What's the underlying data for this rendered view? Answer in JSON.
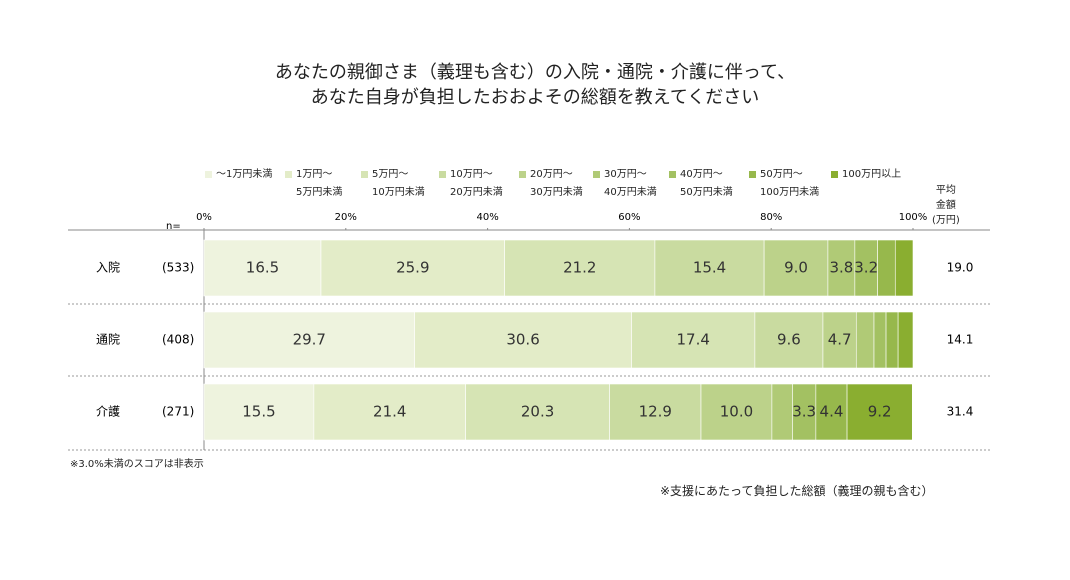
{
  "chart_data": {
    "type": "stacked-bar-horizontal",
    "title": "あなたの親御さま（義理も含む）の入院・通院・介護に伴って、\nあなた自身が負担したおおよその総額を教えてください",
    "categories": [
      "入院",
      "通院",
      "介護"
    ],
    "n_label": "n=",
    "sample_sizes": [
      "(533)",
      "(408)",
      "(271)"
    ],
    "average_header": "平均\n金額\n(万円)",
    "averages": [
      "19.0",
      "14.1",
      "31.4"
    ],
    "xlim": [
      0,
      100
    ],
    "xticks": [
      {
        "value": 0,
        "label": "0%"
      },
      {
        "value": 20,
        "label": "20%"
      },
      {
        "value": 40,
        "label": "40%"
      },
      {
        "value": 60,
        "label": "60%"
      },
      {
        "value": 80,
        "label": "80%"
      },
      {
        "value": 100,
        "label": "100%"
      }
    ],
    "series": [
      {
        "name": "～1万円未満",
        "color": "#eef3de",
        "values": [
          16.5,
          29.7,
          15.5
        ],
        "value_labels": [
          "16.5",
          "29.7",
          "15.5"
        ]
      },
      {
        "name": "1万円～\n5万円未満",
        "color": "#e3ecc8",
        "values": [
          25.9,
          30.6,
          21.4
        ],
        "value_labels": [
          "25.9",
          "30.6",
          "21.4"
        ]
      },
      {
        "name": "5万円～\n10万円未満",
        "color": "#d6e4b4",
        "values": [
          21.2,
          17.4,
          20.3
        ],
        "value_labels": [
          "21.2",
          "17.4",
          "20.3"
        ]
      },
      {
        "name": "10万円～\n20万円未満",
        "color": "#c9dba0",
        "values": [
          15.4,
          9.6,
          12.9
        ],
        "value_labels": [
          "15.4",
          "9.6",
          "12.9"
        ]
      },
      {
        "name": "20万円～\n30万円未満",
        "color": "#bcd28a",
        "values": [
          9.0,
          4.7,
          10.0
        ],
        "value_labels": [
          "9.0",
          "4.7",
          "10.0"
        ]
      },
      {
        "name": "30万円～\n40万円未満",
        "color": "#b0ca76",
        "values": [
          3.8,
          2.5,
          2.9
        ],
        "value_labels": [
          "3.8",
          null,
          null
        ]
      },
      {
        "name": "40万円～\n50万円未満",
        "color": "#a3c162",
        "values": [
          3.2,
          1.7,
          3.3
        ],
        "value_labels": [
          "3.2",
          null,
          "3.3"
        ]
      },
      {
        "name": "50万円～\n100万円未満",
        "color": "#97b84c",
        "values": [
          2.5,
          1.7,
          4.4
        ],
        "value_labels": [
          null,
          null,
          "4.4"
        ]
      },
      {
        "name": "100万円以上",
        "color": "#8aae30",
        "values": [
          2.5,
          2.1,
          9.2
        ],
        "value_labels": [
          null,
          null,
          "9.2"
        ]
      }
    ],
    "note": "※3.0%未満のスコアは非表示",
    "footnote": "※支援にあたって負担した総額（義理の親も含む）"
  }
}
